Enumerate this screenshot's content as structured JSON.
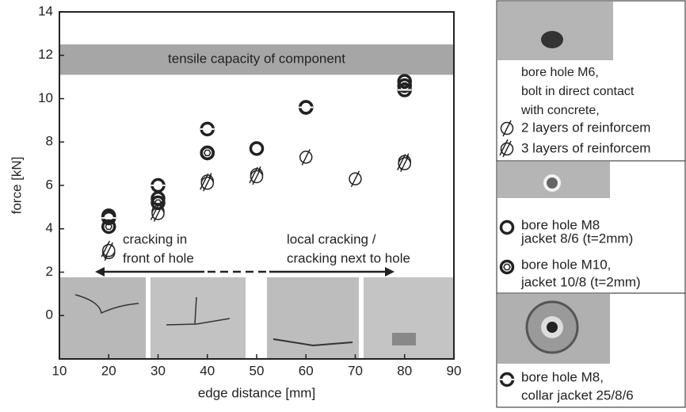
{
  "chart_data": {
    "type": "scatter",
    "xlabel": "edge distance [mm]",
    "ylabel": "force [kN]",
    "xlim": [
      10,
      90
    ],
    "ylim": [
      -2,
      14
    ],
    "xticks": [
      10,
      20,
      30,
      40,
      50,
      60,
      70,
      80,
      90
    ],
    "yticks": [
      0,
      2,
      4,
      6,
      8,
      10,
      12,
      14
    ],
    "band": {
      "label": "tensile capacity of component",
      "y1": 11.1,
      "y2": 12.5,
      "color": "#a6a6a6"
    },
    "annotations": [
      [
        "cracking in",
        "front of hole"
      ],
      [
        "local cracking /",
        "cracking next to hole"
      ]
    ],
    "legend_header": [
      "bore hole M6,",
      "bolt in direct contact",
      "with concrete,"
    ],
    "series": [
      {
        "name": "2 layers of reinforcem",
        "marker": "slash",
        "color": "#222222",
        "x": [
          20,
          30,
          40,
          50,
          60,
          70,
          80
        ],
        "values": [
          2.9,
          4.8,
          6.2,
          6.5,
          7.3,
          6.3,
          7.1
        ]
      },
      {
        "name": "3 layers of reinforcem",
        "marker": "double-slash",
        "color": "#222222",
        "x": [
          20,
          30,
          40,
          50,
          80
        ],
        "values": [
          3.0,
          4.7,
          6.1,
          6.4,
          7.0
        ]
      },
      {
        "name": "bore hole M8",
        "name2": "jacket 8/6 (t=2mm)",
        "marker": "ring",
        "color": "#222222",
        "x": [
          20,
          30,
          40,
          50,
          60,
          80
        ],
        "values": [
          4.6,
          5.4,
          7.5,
          7.7,
          9.6,
          10.8
        ]
      },
      {
        "name": "bore hole M10,",
        "name2": "jacket 10/8 (t=2mm)",
        "marker": "hex-ring",
        "color": "#222222",
        "x": [
          20,
          30,
          40,
          80
        ],
        "values": [
          4.1,
          5.2,
          7.5,
          10.6
        ]
      },
      {
        "name": "bore hole M8,",
        "name2": "collar jacket 25/8/6",
        "marker": "dash-ring",
        "color": "#222222",
        "x": [
          20,
          30,
          40,
          60,
          80
        ],
        "values": [
          4.5,
          6.0,
          8.6,
          9.6,
          10.4
        ]
      }
    ]
  }
}
